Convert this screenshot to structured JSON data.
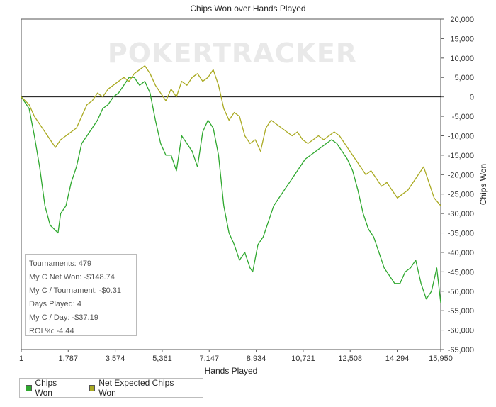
{
  "chart_data": {
    "type": "line",
    "title": "Chips Won over Hands Played",
    "xlabel": "Hands Played",
    "ylabel": "Chips Won",
    "xlim": [
      1,
      15950
    ],
    "ylim": [
      -65000,
      20000
    ],
    "x_ticks": [
      1,
      1787,
      3574,
      5361,
      7147,
      8934,
      10721,
      12508,
      14294,
      15950
    ],
    "x_tick_labels": [
      "1",
      "1,787",
      "3,574",
      "5,361",
      "7,147",
      "8,934",
      "10,721",
      "12,508",
      "14,294",
      "15,950"
    ],
    "y_ticks": [
      20000,
      15000,
      10000,
      5000,
      0,
      -5000,
      -10000,
      -15000,
      -20000,
      -25000,
      -30000,
      -35000,
      -40000,
      -45000,
      -50000,
      -55000,
      -60000,
      -65000
    ],
    "y_tick_labels": [
      "20,000",
      "15,000",
      "10,000",
      "5,000",
      "0",
      "-5,000",
      "-10,000",
      "-15,000",
      "-20,000",
      "-25,000",
      "-30,000",
      "-35,000",
      "-40,000",
      "-45,000",
      "-50,000",
      "-55,000",
      "-60,000",
      "-65,000"
    ],
    "grid": false,
    "legend_position": "bottom-left",
    "series": [
      {
        "name": "Chips Won",
        "color": "#2fa82f",
        "x": [
          1,
          300,
          500,
          700,
          900,
          1100,
          1250,
          1400,
          1500,
          1700,
          1900,
          2100,
          2300,
          2500,
          2700,
          2900,
          3100,
          3300,
          3500,
          3700,
          3900,
          4100,
          4300,
          4500,
          4700,
          4900,
          5100,
          5300,
          5500,
          5700,
          5900,
          6100,
          6300,
          6500,
          6700,
          6900,
          7100,
          7300,
          7500,
          7700,
          7900,
          8100,
          8300,
          8500,
          8700,
          8800,
          9000,
          9200,
          9400,
          9600,
          9800,
          10000,
          10200,
          10400,
          10600,
          10800,
          11000,
          11200,
          11400,
          11600,
          11800,
          12000,
          12200,
          12400,
          12600,
          12800,
          13000,
          13200,
          13400,
          13600,
          13800,
          14000,
          14200,
          14400,
          14600,
          14800,
          15000,
          15200,
          15400,
          15600,
          15800,
          15950
        ],
        "y": [
          0,
          -3000,
          -10000,
          -18000,
          -28000,
          -33000,
          -34000,
          -35000,
          -30000,
          -28000,
          -22000,
          -18000,
          -12000,
          -10000,
          -8000,
          -6000,
          -3000,
          -2000,
          0,
          1000,
          3000,
          5000,
          5000,
          3000,
          4000,
          1000,
          -6000,
          -12000,
          -15000,
          -15000,
          -19000,
          -10000,
          -12000,
          -14000,
          -18000,
          -9000,
          -6000,
          -8000,
          -15000,
          -28000,
          -35000,
          -38000,
          -42000,
          -40000,
          -44000,
          -45000,
          -38000,
          -36000,
          -32000,
          -28000,
          -26000,
          -24000,
          -22000,
          -20000,
          -18000,
          -16000,
          -15000,
          -14000,
          -13000,
          -12000,
          -11000,
          -12000,
          -14000,
          -16000,
          -19000,
          -24000,
          -30000,
          -34000,
          -36000,
          -40000,
          -44000,
          -46000,
          -48000,
          -48000,
          -45000,
          -44000,
          -42000,
          -48000,
          -52000,
          -50000,
          -44000,
          -53000
        ]
      },
      {
        "name": "Net Expected Chips Won",
        "color": "#aaaa22",
        "x": [
          1,
          300,
          500,
          700,
          900,
          1100,
          1300,
          1500,
          1700,
          1900,
          2100,
          2300,
          2500,
          2700,
          2900,
          3100,
          3300,
          3500,
          3700,
          3900,
          4100,
          4300,
          4500,
          4700,
          4900,
          5100,
          5300,
          5500,
          5700,
          5900,
          6100,
          6300,
          6500,
          6700,
          6900,
          7100,
          7300,
          7500,
          7700,
          7900,
          8100,
          8300,
          8500,
          8700,
          8900,
          9100,
          9300,
          9500,
          9700,
          9900,
          10100,
          10300,
          10500,
          10700,
          10900,
          11100,
          11300,
          11500,
          11700,
          11900,
          12100,
          12300,
          12500,
          12700,
          12900,
          13100,
          13300,
          13500,
          13700,
          13900,
          14100,
          14300,
          14500,
          14700,
          14900,
          15100,
          15300,
          15500,
          15700,
          15950
        ],
        "y": [
          0,
          -2000,
          -5000,
          -7000,
          -9000,
          -11000,
          -13000,
          -11000,
          -10000,
          -9000,
          -8000,
          -5000,
          -2000,
          -1000,
          1000,
          0,
          2000,
          3000,
          4000,
          5000,
          4000,
          6000,
          7000,
          8000,
          6000,
          3000,
          1000,
          -1000,
          2000,
          0,
          4000,
          3000,
          5000,
          6000,
          4000,
          5000,
          7000,
          3000,
          -3000,
          -6000,
          -4000,
          -5000,
          -10000,
          -12000,
          -11000,
          -14000,
          -8000,
          -6000,
          -7000,
          -8000,
          -9000,
          -10000,
          -9000,
          -11000,
          -12000,
          -11000,
          -10000,
          -11000,
          -10000,
          -9000,
          -10000,
          -12000,
          -14000,
          -16000,
          -18000,
          -20000,
          -19000,
          -21000,
          -23000,
          -22000,
          -24000,
          -26000,
          -25000,
          -24000,
          -22000,
          -20000,
          -18000,
          -22000,
          -26000,
          -28000
        ]
      }
    ]
  },
  "watermark": "POKERTRACKER",
  "stats": {
    "tournaments": "Tournaments: 479",
    "net_won": "My C Net Won: -$148.74",
    "per_tournament": "My C / Tournament: -$0.31",
    "days_played": "Days Played: 4",
    "per_day": "My C / Day: -$37.19",
    "roi": "ROI %: -4.44"
  },
  "legend": {
    "chips_won": "Chips Won",
    "net_expected": "Net Expected Chips Won",
    "chips_won_color": "#2fa82f",
    "net_expected_color": "#aaaa22"
  }
}
